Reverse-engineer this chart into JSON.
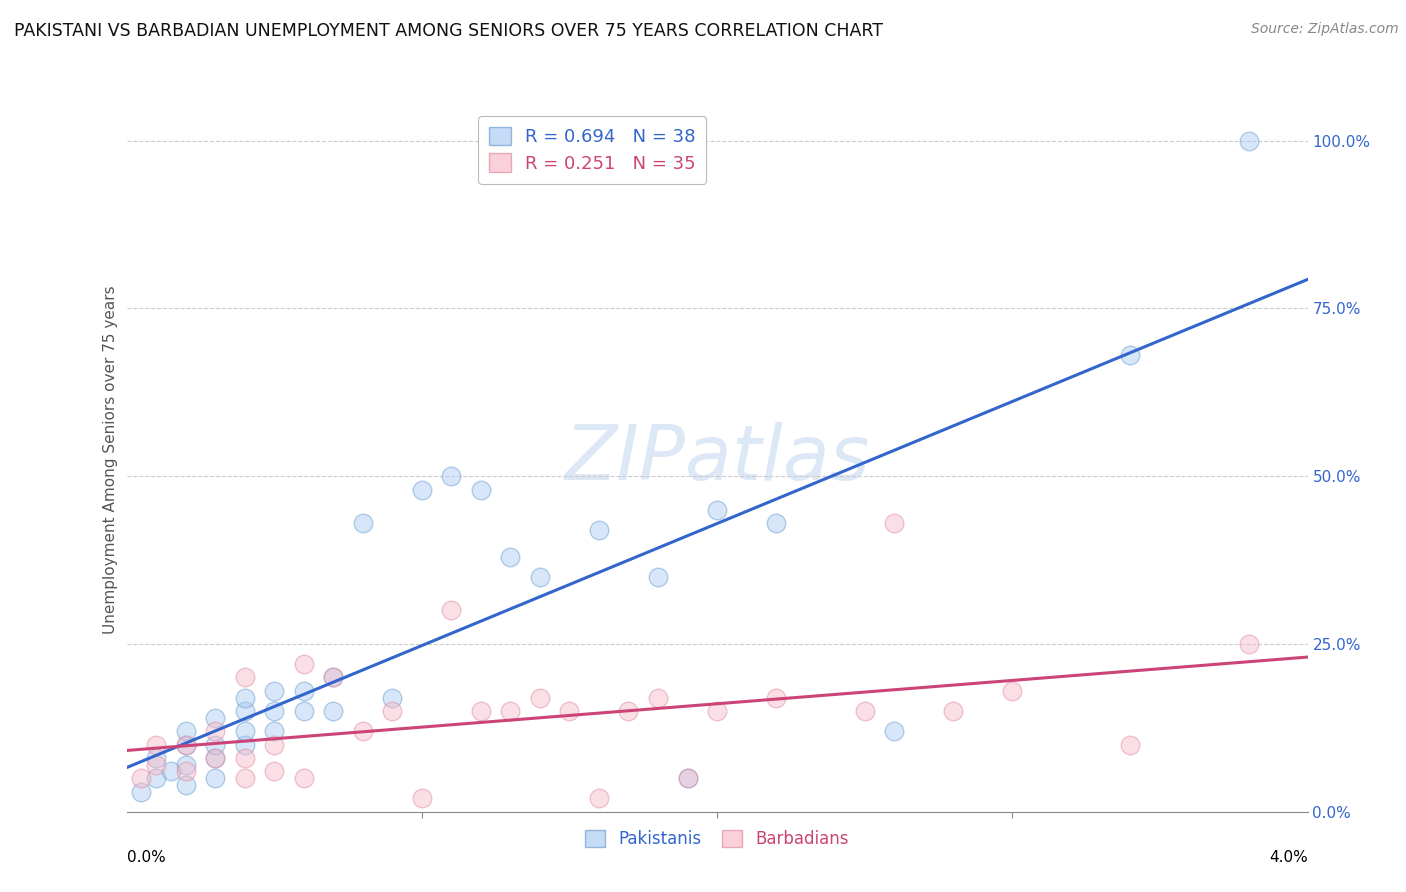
{
  "title": "PAKISTANI VS BARBADIAN UNEMPLOYMENT AMONG SENIORS OVER 75 YEARS CORRELATION CHART",
  "source": "Source: ZipAtlas.com",
  "ylabel": "Unemployment Among Seniors over 75 years",
  "xlim": [
    0.0,
    0.04
  ],
  "ylim": [
    0.0,
    1.05
  ],
  "yticks": [
    0.0,
    0.25,
    0.5,
    0.75,
    1.0
  ],
  "ytick_labels": [
    "0.0%",
    "25.0%",
    "50.0%",
    "75.0%",
    "100.0%"
  ],
  "pakistani_color_face": "#a8c8f0",
  "pakistani_color_edge": "#6699cc",
  "barbadian_color_face": "#f8b8c8",
  "barbadian_color_edge": "#dd8899",
  "pakistani_line_color": "#3366cc",
  "barbadian_line_color": "#cc4477",
  "pakistani_x": [
    0.0005,
    0.001,
    0.001,
    0.0015,
    0.002,
    0.002,
    0.002,
    0.002,
    0.003,
    0.003,
    0.003,
    0.003,
    0.004,
    0.004,
    0.004,
    0.004,
    0.005,
    0.005,
    0.005,
    0.006,
    0.006,
    0.007,
    0.007,
    0.008,
    0.009,
    0.01,
    0.011,
    0.012,
    0.013,
    0.014,
    0.016,
    0.018,
    0.019,
    0.02,
    0.022,
    0.026,
    0.034,
    0.038
  ],
  "pakistani_y": [
    0.03,
    0.05,
    0.08,
    0.06,
    0.04,
    0.07,
    0.1,
    0.12,
    0.05,
    0.08,
    0.1,
    0.14,
    0.1,
    0.12,
    0.15,
    0.17,
    0.12,
    0.15,
    0.18,
    0.15,
    0.18,
    0.15,
    0.2,
    0.43,
    0.17,
    0.48,
    0.5,
    0.48,
    0.38,
    0.35,
    0.42,
    0.35,
    0.05,
    0.45,
    0.43,
    0.12,
    0.68,
    1.0
  ],
  "barbadian_x": [
    0.0005,
    0.001,
    0.001,
    0.002,
    0.002,
    0.003,
    0.003,
    0.004,
    0.004,
    0.004,
    0.005,
    0.005,
    0.006,
    0.006,
    0.007,
    0.008,
    0.009,
    0.01,
    0.011,
    0.012,
    0.013,
    0.014,
    0.015,
    0.016,
    0.017,
    0.018,
    0.019,
    0.02,
    0.022,
    0.025,
    0.026,
    0.028,
    0.03,
    0.034,
    0.038
  ],
  "barbadian_y": [
    0.05,
    0.07,
    0.1,
    0.06,
    0.1,
    0.08,
    0.12,
    0.05,
    0.08,
    0.2,
    0.06,
    0.1,
    0.05,
    0.22,
    0.2,
    0.12,
    0.15,
    0.02,
    0.3,
    0.15,
    0.15,
    0.17,
    0.15,
    0.02,
    0.15,
    0.17,
    0.05,
    0.15,
    0.17,
    0.15,
    0.43,
    0.15,
    0.18,
    0.1,
    0.25
  ],
  "background_color": "#ffffff",
  "grid_color": "#cccccc",
  "watermark_text": "ZIPatlas",
  "marker_size": 180,
  "marker_alpha": 0.45
}
